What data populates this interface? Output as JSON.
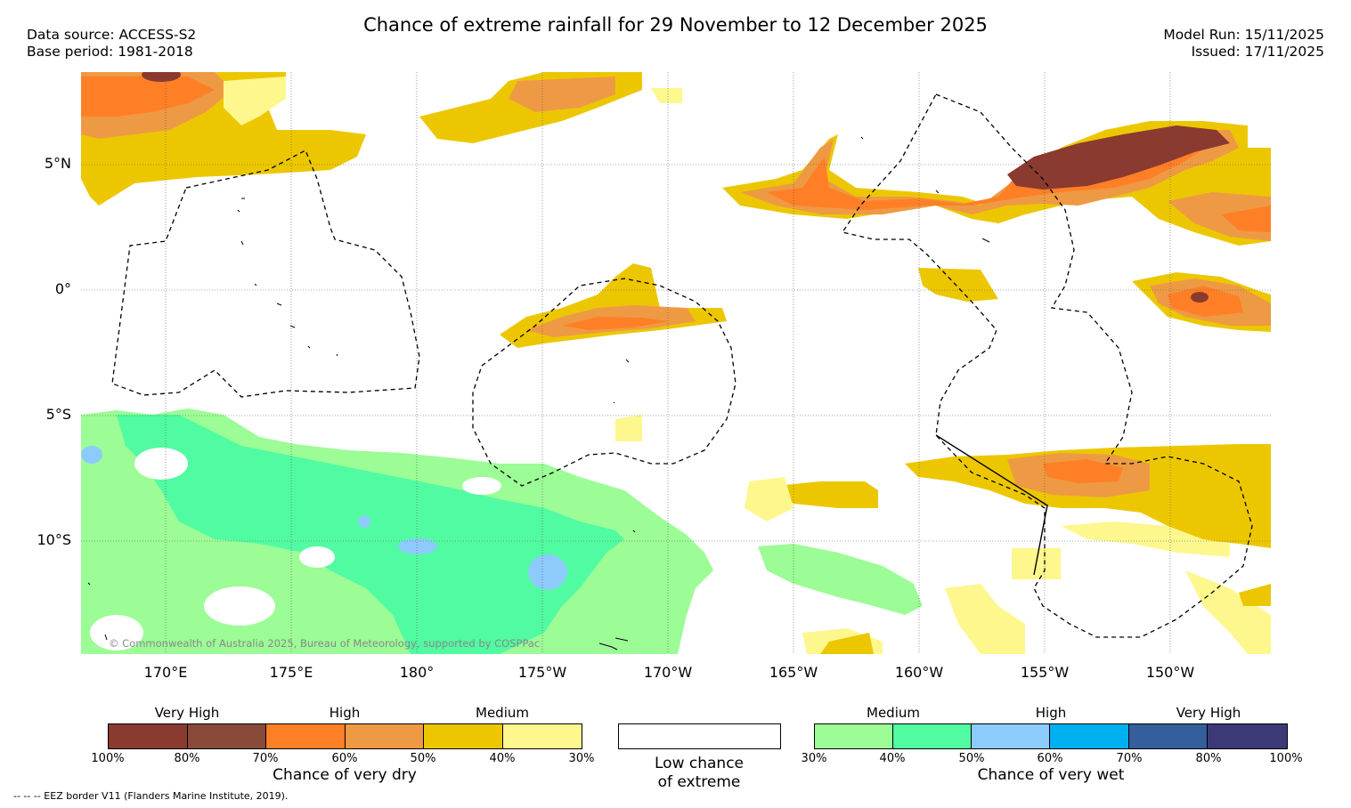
{
  "header": {
    "title": "Chance of extreme rainfall for 29 November to 12 December 2025",
    "data_source": "Data source: ACCESS-S2",
    "base_period": "Base period: 1981-2018",
    "model_run": "Model Run: 15/11/2025",
    "issued": "Issued: 17/11/2025"
  },
  "map": {
    "lat_labels": [
      "5°N",
      "0°",
      "5°S",
      "10°S"
    ],
    "lon_labels": [
      "170°E",
      "175°E",
      "180°",
      "175°W",
      "170°W",
      "165°W",
      "160°W",
      "155°W",
      "150°W"
    ],
    "copyright": "© Commonwealth of Australia 2025, Bureau of Meteorology, supported by COSPPac"
  },
  "legend": {
    "dry": {
      "title": "Chance of very dry",
      "categories": [
        "Very High",
        "High",
        "Medium"
      ],
      "ticks": [
        "100%",
        "80%",
        "70%",
        "60%",
        "50%",
        "40%",
        "30%"
      ],
      "colors": [
        "#8b3a2f",
        "#8a4a3a",
        "#ff7f27",
        "#ee9a44",
        "#ecc700",
        "#fdf78e"
      ]
    },
    "neutral": {
      "title_line1": "Low chance",
      "title_line2": "of extreme"
    },
    "wet": {
      "title": "Chance of very wet",
      "categories": [
        "Medium",
        "High",
        "Very High"
      ],
      "ticks": [
        "30%",
        "40%",
        "50%",
        "60%",
        "70%",
        "80%",
        "100%"
      ],
      "colors": [
        "#9cfc96",
        "#51fba1",
        "#8ccbfc",
        "#00b0f0",
        "#355f9c",
        "#3b3a76"
      ]
    }
  },
  "footnote": "--  --  -- EEZ border V11 (Flanders Marine Institute, 2019)."
}
